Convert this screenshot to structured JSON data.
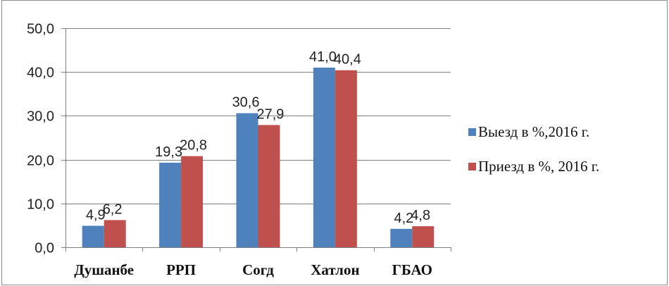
{
  "chart_data": {
    "type": "bar",
    "title": "",
    "xlabel": "",
    "ylabel": "",
    "categories": [
      "Душанбе",
      "РРП",
      "Согд",
      "Хатлон",
      "ГБАО"
    ],
    "series": [
      {
        "name": "Выезд в %,2016 г.",
        "color": "#4F81BD",
        "values": [
          4.9,
          19.3,
          30.6,
          41.0,
          4.2
        ],
        "labels": [
          "4,9",
          "19,3",
          "30,6",
          "41,0",
          "4,2"
        ]
      },
      {
        "name": "Приезд в %, 2016 г.",
        "color": "#C0504D",
        "values": [
          6.2,
          20.8,
          27.9,
          40.4,
          4.8
        ],
        "labels": [
          "6,2",
          "20,8",
          "27,9",
          "40,4",
          "4,8"
        ]
      }
    ],
    "ylim": [
      0,
      50
    ],
    "yticks": [
      0,
      10,
      20,
      30,
      40,
      50
    ],
    "ytick_labels": [
      "0,0",
      "10,0",
      "20,0",
      "30,0",
      "40,0",
      "50,0"
    ],
    "grid": true,
    "gridline_color": "#7F7F7F",
    "legend_position": "right"
  }
}
